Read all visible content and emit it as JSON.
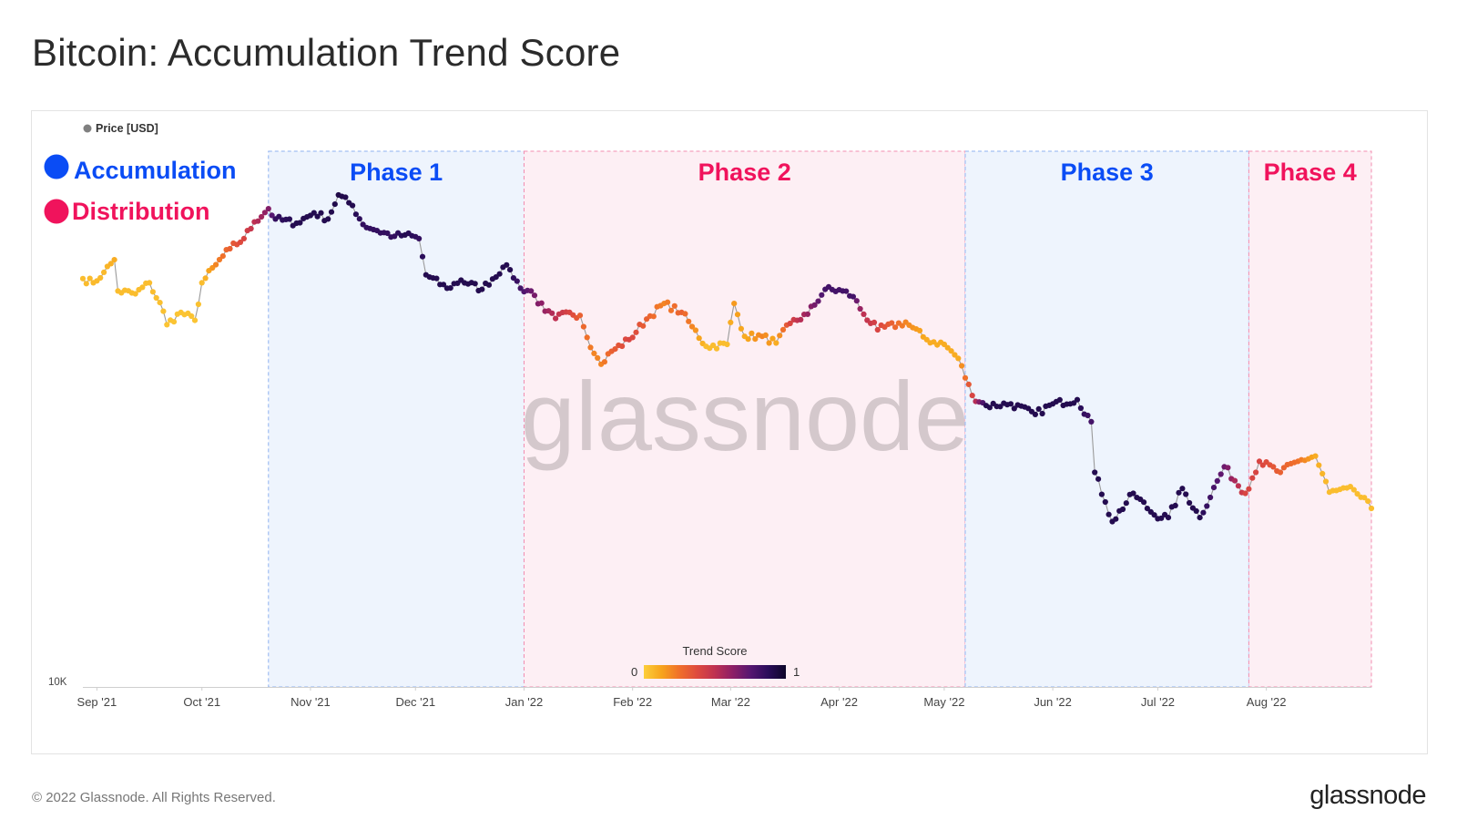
{
  "page": {
    "title": "Bitcoin: Accumulation Trend Score",
    "copyright": "© 2022 Glassnode. All Rights Reserved.",
    "brand": "glassnode",
    "watermark": "glassnode"
  },
  "legend": {
    "series_label": "Price [USD]",
    "series_color": "#808080",
    "accumulation_label": "Accumulation",
    "accumulation_color": "#0a4cf5",
    "distribution_label": "Distribution",
    "distribution_color": "#f0135c"
  },
  "colorbar": {
    "title": "Trend Score",
    "min_label": "0",
    "max_label": "1",
    "colors": [
      "#fcce3a",
      "#f7a41c",
      "#f0702a",
      "#de4a3e",
      "#bf3152",
      "#8d1f66",
      "#561771",
      "#2a0d5a",
      "#0d0629"
    ]
  },
  "chart_data": {
    "type": "scatter",
    "title": "Bitcoin: Accumulation Trend Score",
    "ylabel": "Price [USD]",
    "y_scale": "log",
    "y_min_label": "10K",
    "ylim": [
      10000,
      80000
    ],
    "x_ticks": [
      "Sep '21",
      "Oct '21",
      "Nov '21",
      "Dec '21",
      "Jan '22",
      "Feb '22",
      "Mar '22",
      "Apr '22",
      "May '22",
      "Jun '22",
      "Jul '22",
      "Aug '22"
    ],
    "xlim": [
      "2021-08-28",
      "2022-08-31"
    ],
    "phases": [
      {
        "name": "Phase 1",
        "type": "accumulation",
        "start": "2021-10-20",
        "end": "2022-01-01"
      },
      {
        "name": "Phase 2",
        "type": "distribution",
        "start": "2022-01-01",
        "end": "2022-05-07"
      },
      {
        "name": "Phase 3",
        "type": "accumulation",
        "start": "2022-05-07",
        "end": "2022-07-27"
      },
      {
        "name": "Phase 4",
        "type": "distribution",
        "start": "2022-07-27",
        "end": "2022-08-31"
      }
    ],
    "price_keypoints": [
      [
        "2021-08-28",
        48800,
        0.05
      ],
      [
        "2021-08-31",
        48000,
        0.06
      ],
      [
        "2021-09-03",
        50000,
        0.06
      ],
      [
        "2021-09-06",
        52500,
        0.1
      ],
      [
        "2021-09-07",
        46500,
        0.05
      ],
      [
        "2021-09-12",
        46000,
        0.05
      ],
      [
        "2021-09-16",
        48000,
        0.05
      ],
      [
        "2021-09-20",
        43000,
        0.04
      ],
      [
        "2021-09-21",
        40800,
        0.03
      ],
      [
        "2021-09-25",
        42800,
        0.03
      ],
      [
        "2021-09-29",
        41500,
        0.03
      ],
      [
        "2021-10-01",
        48000,
        0.05
      ],
      [
        "2021-10-05",
        51500,
        0.2
      ],
      [
        "2021-10-09",
        54800,
        0.3
      ],
      [
        "2021-10-13",
        57000,
        0.4
      ],
      [
        "2021-10-16",
        60800,
        0.5
      ],
      [
        "2021-10-20",
        64000,
        0.65
      ],
      [
        "2021-10-22",
        61500,
        0.85
      ],
      [
        "2021-10-28",
        60500,
        0.9
      ],
      [
        "2021-11-02",
        63000,
        0.9
      ],
      [
        "2021-11-06",
        61500,
        0.9
      ],
      [
        "2021-11-09",
        67500,
        0.92
      ],
      [
        "2021-11-13",
        64800,
        0.9
      ],
      [
        "2021-11-16",
        60200,
        0.85
      ],
      [
        "2021-11-20",
        58800,
        0.85
      ],
      [
        "2021-11-25",
        57500,
        0.85
      ],
      [
        "2021-11-28",
        57800,
        0.9
      ],
      [
        "2021-12-02",
        57000,
        0.85
      ],
      [
        "2021-12-04",
        49500,
        0.9
      ],
      [
        "2021-12-10",
        47000,
        0.9
      ],
      [
        "2021-12-14",
        48500,
        0.9
      ],
      [
        "2021-12-20",
        46800,
        0.9
      ],
      [
        "2021-12-26",
        51000,
        0.9
      ],
      [
        "2021-12-28",
        50500,
        0.9
      ],
      [
        "2021-12-31",
        47000,
        0.8
      ],
      [
        "2022-01-03",
        46500,
        0.7
      ],
      [
        "2022-01-07",
        43000,
        0.6
      ],
      [
        "2022-01-10",
        41800,
        0.5
      ],
      [
        "2022-01-14",
        42800,
        0.4
      ],
      [
        "2022-01-17",
        42300,
        0.3
      ],
      [
        "2022-01-21",
        36500,
        0.2
      ],
      [
        "2022-01-23",
        35000,
        0.2
      ],
      [
        "2022-01-26",
        36800,
        0.3
      ],
      [
        "2022-01-31",
        38500,
        0.4
      ],
      [
        "2022-02-05",
        41700,
        0.3
      ],
      [
        "2022-02-10",
        44300,
        0.2
      ],
      [
        "2022-02-15",
        42800,
        0.3
      ],
      [
        "2022-02-18",
        40500,
        0.2
      ],
      [
        "2022-02-22",
        37500,
        0.05
      ],
      [
        "2022-02-28",
        37800,
        0.05
      ],
      [
        "2022-03-02",
        44300,
        0.15
      ],
      [
        "2022-03-05",
        39000,
        0.1
      ],
      [
        "2022-03-10",
        39000,
        0.2
      ],
      [
        "2022-03-14",
        38000,
        0.1
      ],
      [
        "2022-03-18",
        41000,
        0.4
      ],
      [
        "2022-03-23",
        42500,
        0.6
      ],
      [
        "2022-03-28",
        46800,
        0.8
      ],
      [
        "2022-04-02",
        46500,
        0.8
      ],
      [
        "2022-04-05",
        45500,
        0.8
      ],
      [
        "2022-04-08",
        42500,
        0.5
      ],
      [
        "2022-04-12",
        40000,
        0.4
      ],
      [
        "2022-04-20",
        41200,
        0.2
      ],
      [
        "2022-04-26",
        38500,
        0.1
      ],
      [
        "2022-05-01",
        37800,
        0.1
      ],
      [
        "2022-05-05",
        35800,
        0.1
      ],
      [
        "2022-05-09",
        31000,
        0.4
      ],
      [
        "2022-05-13",
        29800,
        0.9
      ],
      [
        "2022-05-20",
        30000,
        0.9
      ],
      [
        "2022-05-27",
        28800,
        0.9
      ],
      [
        "2022-06-01",
        30000,
        0.9
      ],
      [
        "2022-06-08",
        30500,
        0.9
      ],
      [
        "2022-06-12",
        28000,
        0.8
      ],
      [
        "2022-06-13",
        23000,
        0.9
      ],
      [
        "2022-06-16",
        20500,
        0.9
      ],
      [
        "2022-06-18",
        19000,
        0.9
      ],
      [
        "2022-06-24",
        21200,
        0.9
      ],
      [
        "2022-06-30",
        19500,
        0.9
      ],
      [
        "2022-07-04",
        19300,
        0.9
      ],
      [
        "2022-07-08",
        21600,
        0.9
      ],
      [
        "2022-07-13",
        19300,
        0.9
      ],
      [
        "2022-07-20",
        23500,
        0.7
      ],
      [
        "2022-07-26",
        21200,
        0.4
      ],
      [
        "2022-07-30",
        24000,
        0.4
      ],
      [
        "2022-08-05",
        23000,
        0.3
      ],
      [
        "2022-08-10",
        24000,
        0.25
      ],
      [
        "2022-08-15",
        24500,
        0.1
      ],
      [
        "2022-08-19",
        21300,
        0.05
      ],
      [
        "2022-08-26",
        21500,
        0.05
      ],
      [
        "2022-08-31",
        20000,
        0.05
      ]
    ]
  }
}
